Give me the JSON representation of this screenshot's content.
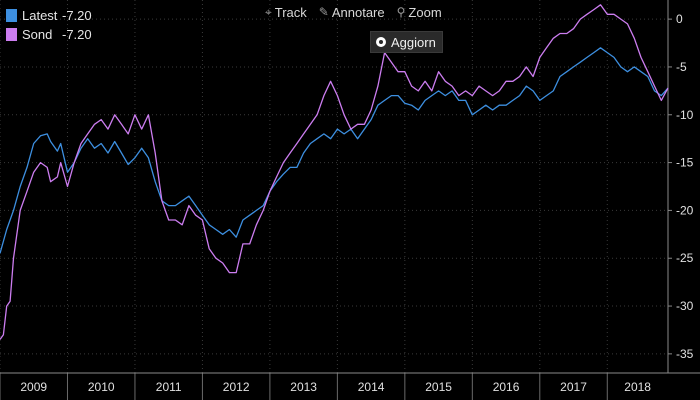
{
  "toolbar": {
    "track": {
      "icon": "crosshair-icon",
      "label": "Track"
    },
    "annotate": {
      "icon": "pencil-icon",
      "label": "Annotare"
    },
    "zoom": {
      "icon": "magnifier-icon",
      "label": "Zoom"
    }
  },
  "refresh_button": {
    "icon": "refresh-icon",
    "label": "Aggiorn"
  },
  "legend": [
    {
      "name": "Latest",
      "value": "-7.20",
      "color": "#3d8fe0"
    },
    {
      "name": "Sond",
      "value": "-7.20",
      "color": "#cc7df0"
    }
  ],
  "chart_data": {
    "type": "line",
    "x_unit": "year",
    "x_ticks": [
      "2009",
      "2010",
      "2011",
      "2012",
      "2013",
      "2014",
      "2015",
      "2016",
      "2017",
      "2018"
    ],
    "y_ticks": [
      "0",
      "-5",
      "-10",
      "-15",
      "-20",
      "-25",
      "-30",
      "-35"
    ],
    "ylim": [
      -37,
      2
    ],
    "xlim": [
      2009.0,
      2018.9
    ],
    "grid": true,
    "legend_position": "top-left",
    "y_axis_side": "right",
    "series": [
      {
        "name": "Latest",
        "color": "#3d8fe0",
        "points": [
          [
            2009.0,
            -24.5
          ],
          [
            2009.1,
            -22
          ],
          [
            2009.2,
            -20
          ],
          [
            2009.3,
            -17.5
          ],
          [
            2009.4,
            -15.5
          ],
          [
            2009.5,
            -13
          ],
          [
            2009.6,
            -12.2
          ],
          [
            2009.7,
            -12
          ],
          [
            2009.75,
            -12.8
          ],
          [
            2009.85,
            -13.8
          ],
          [
            2009.9,
            -13
          ],
          [
            2010.0,
            -16
          ],
          [
            2010.1,
            -15
          ],
          [
            2010.2,
            -13.5
          ],
          [
            2010.3,
            -12.5
          ],
          [
            2010.4,
            -13.5
          ],
          [
            2010.5,
            -13
          ],
          [
            2010.6,
            -14
          ],
          [
            2010.7,
            -12.8
          ],
          [
            2010.8,
            -14
          ],
          [
            2010.9,
            -15.2
          ],
          [
            2011.0,
            -14.5
          ],
          [
            2011.1,
            -13.5
          ],
          [
            2011.2,
            -14.5
          ],
          [
            2011.3,
            -17
          ],
          [
            2011.4,
            -19
          ],
          [
            2011.5,
            -19.5
          ],
          [
            2011.6,
            -19.5
          ],
          [
            2011.7,
            -19
          ],
          [
            2011.8,
            -18.5
          ],
          [
            2011.9,
            -19.5
          ],
          [
            2012.0,
            -20.5
          ],
          [
            2012.1,
            -21.5
          ],
          [
            2012.2,
            -22
          ],
          [
            2012.3,
            -22.5
          ],
          [
            2012.4,
            -22
          ],
          [
            2012.5,
            -22.8
          ],
          [
            2012.6,
            -21
          ],
          [
            2012.7,
            -20.5
          ],
          [
            2012.8,
            -20
          ],
          [
            2012.9,
            -19.5
          ],
          [
            2013.0,
            -18
          ],
          [
            2013.1,
            -17
          ],
          [
            2013.2,
            -16.2
          ],
          [
            2013.3,
            -15.5
          ],
          [
            2013.4,
            -15.5
          ],
          [
            2013.5,
            -14
          ],
          [
            2013.6,
            -13
          ],
          [
            2013.7,
            -12.5
          ],
          [
            2013.8,
            -12
          ],
          [
            2013.9,
            -12.5
          ],
          [
            2014.0,
            -11.5
          ],
          [
            2014.1,
            -12
          ],
          [
            2014.2,
            -11.5
          ],
          [
            2014.3,
            -12.5
          ],
          [
            2014.4,
            -11.5
          ],
          [
            2014.5,
            -10.5
          ],
          [
            2014.6,
            -9
          ],
          [
            2014.7,
            -8.5
          ],
          [
            2014.8,
            -8
          ],
          [
            2014.9,
            -8
          ],
          [
            2015.0,
            -8.8
          ],
          [
            2015.1,
            -9
          ],
          [
            2015.2,
            -9.5
          ],
          [
            2015.3,
            -8.5
          ],
          [
            2015.4,
            -8
          ],
          [
            2015.5,
            -7.5
          ],
          [
            2015.6,
            -8
          ],
          [
            2015.7,
            -7.5
          ],
          [
            2015.8,
            -8.5
          ],
          [
            2015.9,
            -8.5
          ],
          [
            2016.0,
            -10
          ],
          [
            2016.1,
            -9.5
          ],
          [
            2016.2,
            -9
          ],
          [
            2016.3,
            -9.5
          ],
          [
            2016.4,
            -9
          ],
          [
            2016.5,
            -9
          ],
          [
            2016.6,
            -8.5
          ],
          [
            2016.7,
            -8
          ],
          [
            2016.8,
            -7
          ],
          [
            2016.9,
            -7.5
          ],
          [
            2017.0,
            -8.5
          ],
          [
            2017.1,
            -8
          ],
          [
            2017.2,
            -7.5
          ],
          [
            2017.3,
            -6
          ],
          [
            2017.4,
            -5.5
          ],
          [
            2017.5,
            -5
          ],
          [
            2017.6,
            -4.5
          ],
          [
            2017.7,
            -4
          ],
          [
            2017.8,
            -3.5
          ],
          [
            2017.9,
            -3
          ],
          [
            2018.0,
            -3.5
          ],
          [
            2018.1,
            -4
          ],
          [
            2018.2,
            -5
          ],
          [
            2018.3,
            -5.5
          ],
          [
            2018.4,
            -5
          ],
          [
            2018.5,
            -5.5
          ],
          [
            2018.6,
            -6
          ],
          [
            2018.7,
            -7.5
          ],
          [
            2018.8,
            -8
          ],
          [
            2018.9,
            -7.2
          ]
        ]
      },
      {
        "name": "Sond",
        "color": "#cc7df0",
        "points": [
          [
            2009.0,
            -33.5
          ],
          [
            2009.05,
            -33
          ],
          [
            2009.1,
            -30
          ],
          [
            2009.15,
            -29.5
          ],
          [
            2009.2,
            -25
          ],
          [
            2009.3,
            -20
          ],
          [
            2009.4,
            -18
          ],
          [
            2009.5,
            -16
          ],
          [
            2009.6,
            -15
          ],
          [
            2009.7,
            -15.5
          ],
          [
            2009.75,
            -17
          ],
          [
            2009.85,
            -16.5
          ],
          [
            2009.9,
            -15
          ],
          [
            2010.0,
            -17.5
          ],
          [
            2010.1,
            -15
          ],
          [
            2010.2,
            -13
          ],
          [
            2010.3,
            -12
          ],
          [
            2010.4,
            -11
          ],
          [
            2010.5,
            -10.5
          ],
          [
            2010.6,
            -11.5
          ],
          [
            2010.7,
            -10
          ],
          [
            2010.8,
            -11
          ],
          [
            2010.9,
            -12
          ],
          [
            2011.0,
            -10
          ],
          [
            2011.1,
            -11.5
          ],
          [
            2011.2,
            -10
          ],
          [
            2011.3,
            -14
          ],
          [
            2011.4,
            -19
          ],
          [
            2011.5,
            -21
          ],
          [
            2011.6,
            -21
          ],
          [
            2011.7,
            -21.5
          ],
          [
            2011.8,
            -19.5
          ],
          [
            2011.9,
            -20.5
          ],
          [
            2012.0,
            -21
          ],
          [
            2012.1,
            -24
          ],
          [
            2012.2,
            -25
          ],
          [
            2012.3,
            -25.5
          ],
          [
            2012.4,
            -26.5
          ],
          [
            2012.5,
            -26.5
          ],
          [
            2012.6,
            -23.5
          ],
          [
            2012.7,
            -23.5
          ],
          [
            2012.8,
            -21.5
          ],
          [
            2012.9,
            -20
          ],
          [
            2013.0,
            -18
          ],
          [
            2013.1,
            -16.5
          ],
          [
            2013.2,
            -15
          ],
          [
            2013.3,
            -14
          ],
          [
            2013.4,
            -13
          ],
          [
            2013.5,
            -12
          ],
          [
            2013.6,
            -11
          ],
          [
            2013.7,
            -10
          ],
          [
            2013.8,
            -8
          ],
          [
            2013.9,
            -6.5
          ],
          [
            2014.0,
            -8
          ],
          [
            2014.1,
            -10
          ],
          [
            2014.2,
            -11.5
          ],
          [
            2014.3,
            -11
          ],
          [
            2014.4,
            -11
          ],
          [
            2014.5,
            -9.5
          ],
          [
            2014.6,
            -7
          ],
          [
            2014.7,
            -3.5
          ],
          [
            2014.8,
            -4.5
          ],
          [
            2014.9,
            -5.5
          ],
          [
            2015.0,
            -5.5
          ],
          [
            2015.1,
            -7
          ],
          [
            2015.2,
            -7.5
          ],
          [
            2015.3,
            -6.5
          ],
          [
            2015.4,
            -7.5
          ],
          [
            2015.5,
            -5.5
          ],
          [
            2015.6,
            -6.5
          ],
          [
            2015.7,
            -7
          ],
          [
            2015.8,
            -8
          ],
          [
            2015.9,
            -7.5
          ],
          [
            2016.0,
            -8
          ],
          [
            2016.1,
            -7
          ],
          [
            2016.2,
            -7.5
          ],
          [
            2016.3,
            -8
          ],
          [
            2016.4,
            -7.5
          ],
          [
            2016.5,
            -6.5
          ],
          [
            2016.6,
            -6.5
          ],
          [
            2016.7,
            -6
          ],
          [
            2016.8,
            -5
          ],
          [
            2016.9,
            -6
          ],
          [
            2017.0,
            -4
          ],
          [
            2017.1,
            -3
          ],
          [
            2017.2,
            -2
          ],
          [
            2017.3,
            -1.5
          ],
          [
            2017.4,
            -1.5
          ],
          [
            2017.5,
            -1
          ],
          [
            2017.6,
            0
          ],
          [
            2017.7,
            0.5
          ],
          [
            2017.8,
            1
          ],
          [
            2017.9,
            1.5
          ],
          [
            2018.0,
            0.5
          ],
          [
            2018.1,
            0.5
          ],
          [
            2018.2,
            0
          ],
          [
            2018.3,
            -0.5
          ],
          [
            2018.4,
            -2
          ],
          [
            2018.5,
            -4
          ],
          [
            2018.6,
            -5.5
          ],
          [
            2018.7,
            -7
          ],
          [
            2018.8,
            -8.5
          ],
          [
            2018.9,
            -7.2
          ]
        ]
      }
    ]
  }
}
